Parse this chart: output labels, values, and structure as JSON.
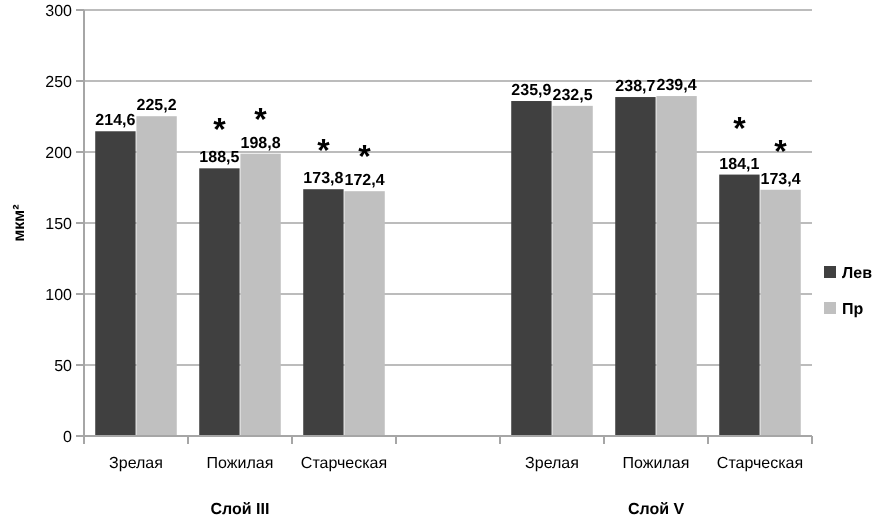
{
  "chart_data": [
    {
      "type": "bar",
      "categories": [
        "Зрелая",
        "Пожилая",
        "Старческая"
      ],
      "xlabel": "Слой III",
      "ylabel": "мкм²",
      "ylim": [
        0,
        300
      ],
      "yticks": [
        0,
        50,
        100,
        150,
        200,
        250,
        300
      ],
      "grid": "y",
      "legend": "right",
      "series": [
        {
          "name": "Лев",
          "color": "#404040",
          "values": [
            214.6,
            188.5,
            173.8
          ],
          "value_labels": [
            "214,6",
            "188,5",
            "173,8"
          ]
        },
        {
          "name": "Пр",
          "color": "#c0c0c0",
          "values": [
            225.2,
            198.8,
            172.4
          ],
          "value_labels": [
            "225,2",
            "198,8",
            "172,4"
          ]
        }
      ],
      "annotations": [
        "*",
        "*",
        "*",
        "*"
      ]
    },
    {
      "type": "bar",
      "categories": [
        "Зрелая",
        "Пожилая",
        "Старческая"
      ],
      "xlabel": "Слой V",
      "ylim": [
        0,
        300
      ],
      "yticks": [
        0,
        50,
        100,
        150,
        200,
        250,
        300
      ],
      "grid": "y",
      "tick_labels": "x",
      "series": [
        {
          "color": "#404040",
          "values": [
            235.9,
            238.7,
            184.1
          ],
          "value_labels": [
            "235,9",
            "238,7",
            "184,1"
          ]
        },
        {
          "color": "#c0c0c0",
          "values": [
            232.5,
            239.4,
            173.4
          ],
          "value_labels": [
            "232,5",
            "239,4",
            "173,4"
          ]
        }
      ],
      "annotations": [
        "*",
        "*"
      ]
    }
  ]
}
